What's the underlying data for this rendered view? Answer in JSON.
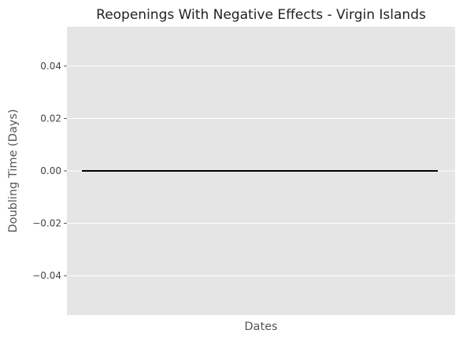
{
  "chart_data": {
    "type": "line",
    "title": "Reopenings With Negative Effects - Virgin Islands",
    "xlabel": "Dates",
    "ylabel": "Doubling Time (Days)",
    "ylim": [
      -0.055,
      0.055
    ],
    "y_ticks": [
      0.04,
      0.02,
      0.0,
      -0.02,
      -0.04
    ],
    "y_tick_labels": [
      "0.04",
      "0.02",
      "0.00",
      "−0.02",
      "−0.04"
    ],
    "grid": true,
    "series": [
      {
        "name": "doubling-time",
        "color": "#000000",
        "x": [
          0,
          1
        ],
        "values": [
          0.0,
          0.0
        ]
      }
    ],
    "colors": {
      "plot_background": "#e5e5e5",
      "grid": "#ffffff",
      "tick_mark": "#555555"
    }
  }
}
